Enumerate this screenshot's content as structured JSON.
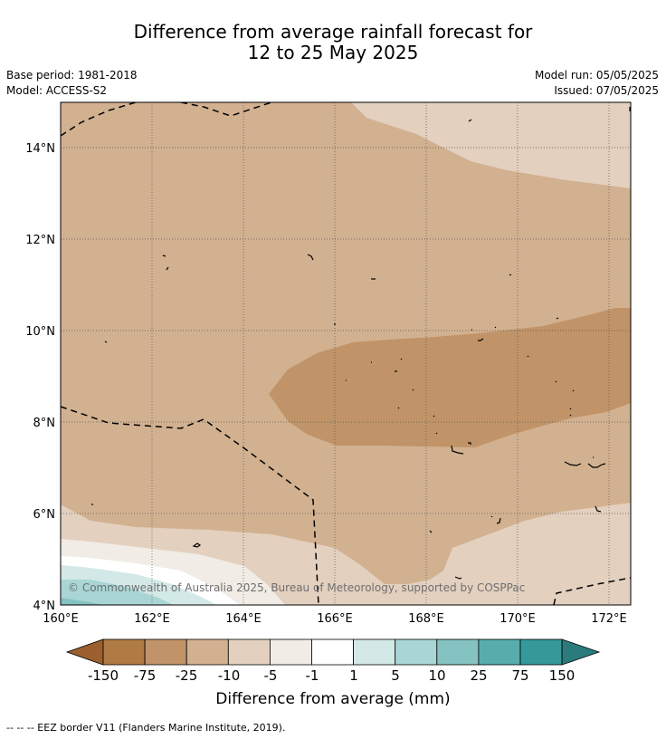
{
  "header": {
    "title_line1": "Difference from average rainfall forecast for",
    "title_line2": "12 to 25 May 2025",
    "base_period": "Base period: 1981-2018",
    "model": "Model: ACCESS-S2",
    "model_run": "Model run: 05/05/2025",
    "issued": "Issued: 07/05/2025"
  },
  "map": {
    "lat_labels": [
      "14°N",
      "12°N",
      "10°N",
      "8°N",
      "6°N",
      "4°N"
    ],
    "lon_labels": [
      "160°E",
      "162°E",
      "164°E",
      "166°E",
      "168°E",
      "170°E",
      "172°E"
    ],
    "copyright": "© Commonwealth of Australia 2025, Bureau of Meteorology, supported by COSPPac"
  },
  "colorbar": {
    "title": "Difference from average (mm)",
    "ticks": [
      "-150",
      "-75",
      "-25",
      "-10",
      "-5",
      "-1",
      "1",
      "5",
      "10",
      "25",
      "75",
      "150"
    ],
    "colors": [
      "#9c5f2e",
      "#b07a45",
      "#c09468",
      "#d2b190",
      "#e3d0bf",
      "#f1ece5",
      "#ffffff",
      "#d3e9e7",
      "#a9d6d4",
      "#85c2c2",
      "#58acac",
      "#35999a",
      "#2c7b7c"
    ]
  },
  "footer": {
    "legend": "--  --  -- EEZ border V11 (Flanders Marine Institute, 2019)."
  }
}
